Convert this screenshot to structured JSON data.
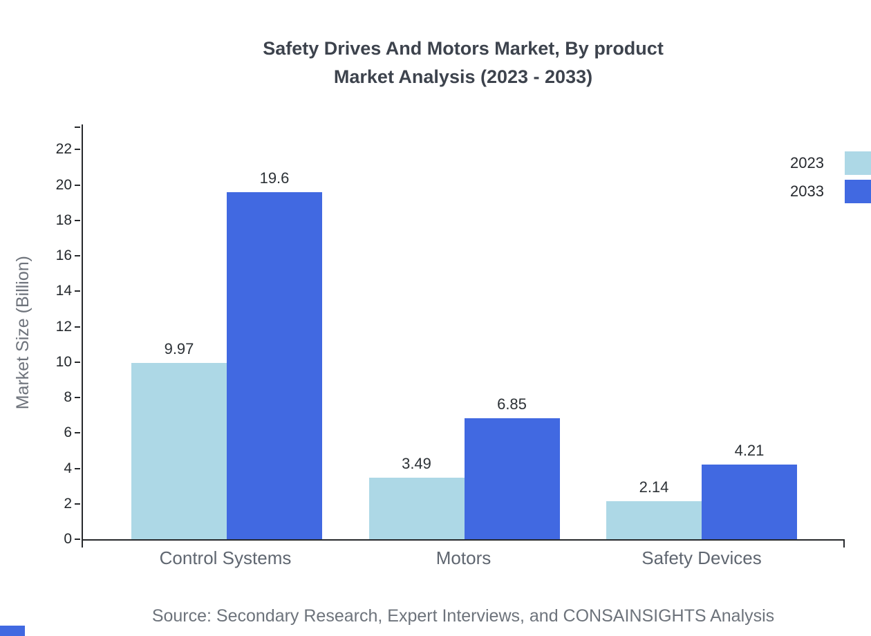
{
  "title": {
    "line1": "Safety Drives And Motors Market, By product",
    "line2": "Market Analysis (2023 - 2033)"
  },
  "source": "Source: Secondary Research, Expert Interviews, and CONSAINSIGHTS Analysis",
  "colors": {
    "series_2023": "#add8e6",
    "series_2033": "#4169e1",
    "axis": "#26282b"
  },
  "chart_data": {
    "type": "bar",
    "title": "Safety Drives And Motors Market, By product Market Analysis (2023 - 2033)",
    "categories": [
      "Control Systems",
      "Motors",
      "Safety Devices"
    ],
    "series": [
      {
        "name": "2023",
        "color": "#add8e6",
        "values": [
          9.97,
          3.49,
          2.14
        ]
      },
      {
        "name": "2033",
        "color": "#4169e1",
        "values": [
          19.6,
          6.85,
          4.21
        ]
      }
    ],
    "xlabel": "",
    "ylabel": "Market Size (Billion)",
    "ylim": [
      0,
      23.5
    ],
    "yticks": [
      0,
      2,
      4,
      6,
      8,
      10,
      12,
      14,
      16,
      18,
      20,
      22
    ],
    "grid": false,
    "legend_position": "top-right"
  }
}
